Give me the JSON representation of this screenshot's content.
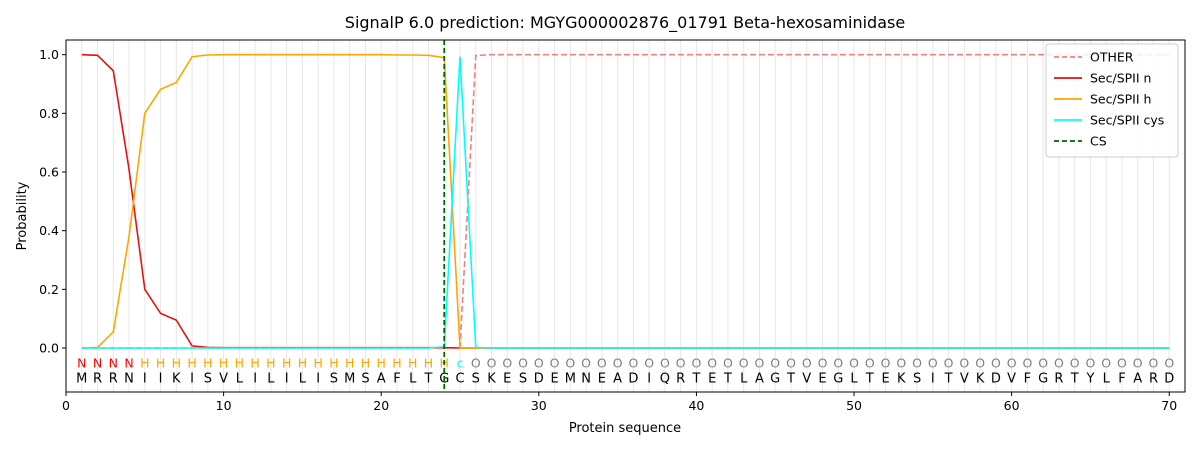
{
  "chart_data": {
    "type": "line",
    "title": "SignalP 6.0 prediction: MGYG000002876_01791 Beta-hexosaminidase",
    "xlabel": "Protein sequence",
    "ylabel": "Probability",
    "xlim": [
      0,
      71
    ],
    "ylim": [
      -0.15,
      1.05
    ],
    "xticks": [
      0,
      10,
      20,
      30,
      40,
      50,
      60,
      70
    ],
    "yticks": [
      0.0,
      0.2,
      0.4,
      0.6,
      0.8,
      1.0
    ],
    "ytick_labels": [
      "0.0",
      "0.2",
      "0.4",
      "0.6",
      "0.8",
      "1.0"
    ],
    "grid": "vertical lines at each residue",
    "legend_position": "top-right",
    "sequence": [
      "M",
      "R",
      "R",
      "N",
      "I",
      "I",
      "K",
      "I",
      "S",
      "V",
      "L",
      "I",
      "L",
      "I",
      "L",
      "I",
      "S",
      "M",
      "S",
      "A",
      "F",
      "L",
      "T",
      "G",
      "C",
      "S",
      "K",
      "E",
      "S",
      "D",
      "E",
      "M",
      "N",
      "E",
      "A",
      "D",
      "I",
      "Q",
      "R",
      "T",
      "E",
      "T",
      "L",
      "A",
      "G",
      "T",
      "V",
      "E",
      "G",
      "L",
      "T",
      "E",
      "K",
      "S",
      "I",
      "T",
      "V",
      "K",
      "D",
      "V",
      "F",
      "G",
      "R",
      "T",
      "Y",
      "L",
      "F",
      "A",
      "R",
      "D"
    ],
    "labels": [
      "N",
      "N",
      "N",
      "N",
      "H",
      "H",
      "H",
      "H",
      "H",
      "H",
      "H",
      "H",
      "H",
      "H",
      "H",
      "H",
      "H",
      "H",
      "H",
      "H",
      "H",
      "H",
      "H",
      "H",
      "c",
      "O",
      "O",
      "O",
      "O",
      "O",
      "O",
      "O",
      "O",
      "O",
      "O",
      "O",
      "O",
      "O",
      "O",
      "O",
      "O",
      "O",
      "O",
      "O",
      "O",
      "O",
      "O",
      "O",
      "O",
      "O",
      "O",
      "O",
      "O",
      "O",
      "O",
      "O",
      "O",
      "O",
      "O",
      "O",
      "O",
      "O",
      "O",
      "O",
      "O",
      "O",
      "O",
      "O",
      "O",
      "O"
    ],
    "label_colors": {
      "N": "#ff0000",
      "H": "#ffa500",
      "c": "#00ffff",
      "O": "#808080"
    },
    "series": [
      {
        "name": "OTHER",
        "color": "#f08080",
        "style": "dashed",
        "x": [
          1,
          2,
          3,
          4,
          5,
          6,
          7,
          8,
          9,
          10,
          11,
          12,
          13,
          14,
          15,
          16,
          17,
          18,
          19,
          20,
          21,
          22,
          23,
          24,
          25,
          26,
          27,
          28,
          29,
          30,
          31,
          32,
          33,
          34,
          35,
          36,
          37,
          38,
          39,
          40,
          41,
          42,
          43,
          44,
          45,
          46,
          47,
          48,
          49,
          50,
          51,
          52,
          53,
          54,
          55,
          56,
          57,
          58,
          59,
          60,
          61,
          62,
          63,
          64,
          65,
          66,
          67,
          68,
          69,
          70
        ],
        "values": [
          0,
          0,
          0,
          0,
          0,
          0,
          0,
          0,
          0,
          0,
          0,
          0,
          0,
          0,
          0,
          0,
          0,
          0,
          0,
          0,
          0,
          0,
          0,
          0,
          0.001,
          0.997,
          1,
          1,
          1,
          1,
          1,
          1,
          1,
          1,
          1,
          1,
          1,
          1,
          1,
          1,
          1,
          1,
          1,
          1,
          1,
          1,
          1,
          1,
          1,
          1,
          1,
          1,
          1,
          1,
          1,
          1,
          1,
          1,
          1,
          1,
          1,
          1,
          1,
          1,
          1,
          1,
          1,
          1,
          1,
          1
        ]
      },
      {
        "name": "Sec/SPII n",
        "color": "#e8110f",
        "style": "solid",
        "x": [
          1,
          2,
          3,
          4,
          5,
          6,
          7,
          8,
          9,
          10,
          11,
          12,
          13,
          14,
          15,
          16,
          17,
          18,
          19,
          20,
          21,
          22,
          23,
          24,
          25,
          26,
          27,
          28,
          29,
          30,
          31,
          32,
          33,
          34,
          35,
          36,
          37,
          38,
          39,
          40,
          41,
          42,
          43,
          44,
          45,
          46,
          47,
          48,
          49,
          50,
          51,
          52,
          53,
          54,
          55,
          56,
          57,
          58,
          59,
          60,
          61,
          62,
          63,
          64,
          65,
          66,
          67,
          68,
          69,
          70
        ],
        "values": [
          1.0,
          0.998,
          0.945,
          0.61,
          0.2,
          0.118,
          0.095,
          0.007,
          0.002,
          0.001,
          0.001,
          0.001,
          0.001,
          0.001,
          0.001,
          0.001,
          0.001,
          0.001,
          0.001,
          0.001,
          0.001,
          0.001,
          0.001,
          0.001,
          0.0,
          0,
          0,
          0,
          0,
          0,
          0,
          0,
          0,
          0,
          0,
          0,
          0,
          0,
          0,
          0,
          0,
          0,
          0,
          0,
          0,
          0,
          0,
          0,
          0,
          0,
          0,
          0,
          0,
          0,
          0,
          0,
          0,
          0,
          0,
          0,
          0,
          0,
          0,
          0,
          0,
          0,
          0,
          0,
          0,
          0
        ]
      },
      {
        "name": "Sec/SPII h",
        "color": "#ffa500",
        "style": "solid",
        "x": [
          1,
          2,
          3,
          4,
          5,
          6,
          7,
          8,
          9,
          10,
          11,
          12,
          13,
          14,
          15,
          16,
          17,
          18,
          19,
          20,
          21,
          22,
          23,
          24,
          25,
          26,
          27,
          28,
          29,
          30,
          31,
          32,
          33,
          34,
          35,
          36,
          37,
          38,
          39,
          40,
          41,
          42,
          43,
          44,
          45,
          46,
          47,
          48,
          49,
          50,
          51,
          52,
          53,
          54,
          55,
          56,
          57,
          58,
          59,
          60,
          61,
          62,
          63,
          64,
          65,
          66,
          67,
          68,
          69,
          70
        ],
        "values": [
          0,
          0.002,
          0.055,
          0.38,
          0.8,
          0.882,
          0.905,
          0.993,
          0.999,
          1,
          1,
          1,
          1,
          1,
          1,
          1,
          1,
          1,
          1,
          1,
          0.999,
          0.999,
          0.998,
          0.99,
          0.0,
          0,
          0,
          0,
          0,
          0,
          0,
          0,
          0,
          0,
          0,
          0,
          0,
          0,
          0,
          0,
          0,
          0,
          0,
          0,
          0,
          0,
          0,
          0,
          0,
          0,
          0,
          0,
          0,
          0,
          0,
          0,
          0,
          0,
          0,
          0,
          0,
          0,
          0,
          0,
          0,
          0,
          0,
          0,
          0,
          0
        ]
      },
      {
        "name": "Sec/SPII cys",
        "color": "#00ffff",
        "style": "solid",
        "x": [
          1,
          2,
          3,
          4,
          5,
          6,
          7,
          8,
          9,
          10,
          11,
          12,
          13,
          14,
          15,
          16,
          17,
          18,
          19,
          20,
          21,
          22,
          23,
          24,
          25,
          26,
          27,
          28,
          29,
          30,
          31,
          32,
          33,
          34,
          35,
          36,
          37,
          38,
          39,
          40,
          41,
          42,
          43,
          44,
          45,
          46,
          47,
          48,
          49,
          50,
          51,
          52,
          53,
          54,
          55,
          56,
          57,
          58,
          59,
          60,
          61,
          62,
          63,
          64,
          65,
          66,
          67,
          68,
          69,
          70
        ],
        "values": [
          0,
          0,
          0,
          0,
          0,
          0,
          0,
          0,
          0,
          0,
          0,
          0,
          0,
          0,
          0,
          0,
          0,
          0,
          0,
          0,
          0,
          0,
          0,
          0.004,
          0.993,
          0.002,
          0,
          0,
          0,
          0,
          0,
          0,
          0,
          0,
          0,
          0,
          0,
          0,
          0,
          0,
          0,
          0,
          0,
          0,
          0,
          0,
          0,
          0,
          0,
          0,
          0,
          0,
          0,
          0,
          0,
          0,
          0,
          0,
          0,
          0,
          0,
          0,
          0,
          0,
          0,
          0,
          0,
          0,
          0,
          0
        ]
      }
    ],
    "cs": {
      "name": "CS",
      "color": "#006400",
      "style": "dashed",
      "x": 24
    }
  }
}
